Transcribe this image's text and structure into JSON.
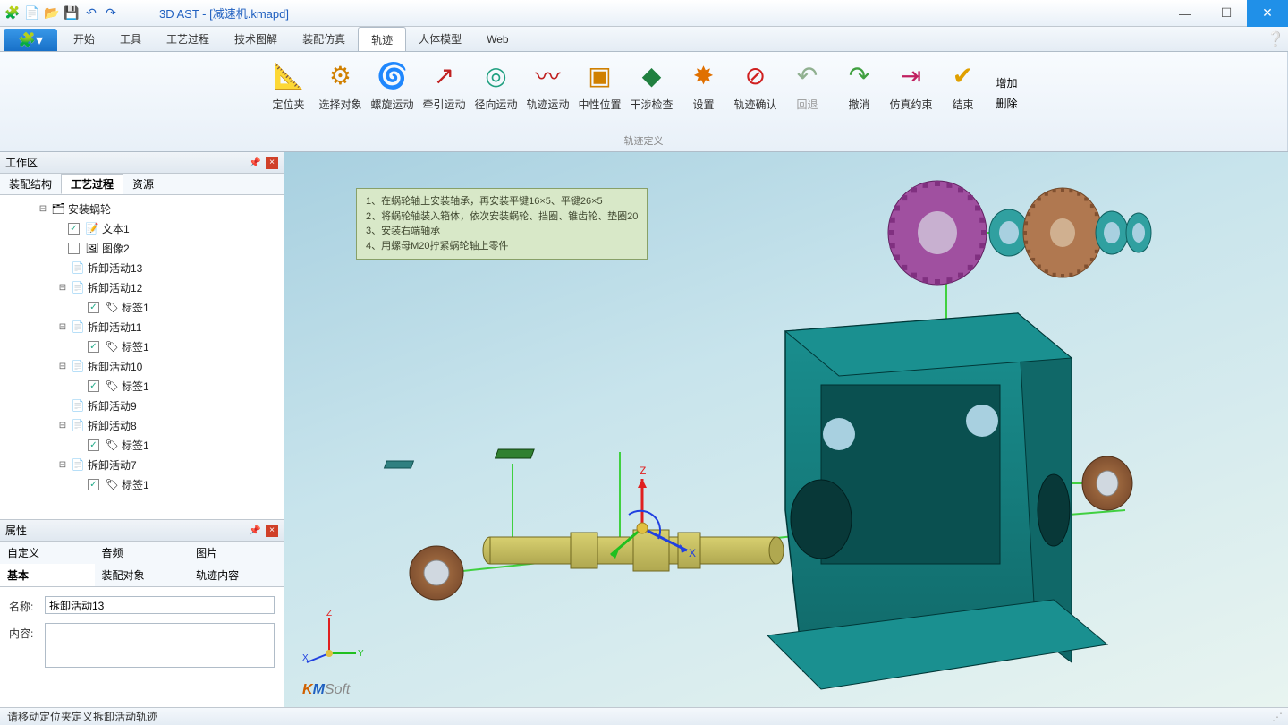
{
  "window": {
    "title": "3D AST - [减速机.kmapd]",
    "qat_icons": [
      "app",
      "new",
      "open",
      "save",
      "undo",
      "redo"
    ]
  },
  "menu": {
    "tabs": [
      "开始",
      "工具",
      "工艺过程",
      "技术图解",
      "装配仿真",
      "轨迹",
      "人体模型",
      "Web"
    ],
    "active_index": 5
  },
  "ribbon": {
    "group_label": "轨迹定义",
    "buttons": [
      {
        "label": "定位夹",
        "icon": "📐",
        "color": "#2060c0"
      },
      {
        "label": "选择对象",
        "icon": "⚙",
        "color": "#d08000"
      },
      {
        "label": "螺旋运动",
        "icon": "🌀",
        "color": "#2060c0"
      },
      {
        "label": "牵引运动",
        "icon": "↗",
        "color": "#c02020"
      },
      {
        "label": "径向运动",
        "icon": "◎",
        "color": "#20a080"
      },
      {
        "label": "轨迹运动",
        "icon": "〰",
        "color": "#c02020"
      },
      {
        "label": "中性位置",
        "icon": "▣",
        "color": "#d08000"
      },
      {
        "label": "干涉检查",
        "icon": "◆",
        "color": "#208040"
      },
      {
        "label": "设置",
        "icon": "✸",
        "color": "#e07000"
      },
      {
        "label": "轨迹确认",
        "icon": "⊘",
        "color": "#d02020"
      },
      {
        "label": "回退",
        "icon": "↶",
        "color": "#90b090",
        "disabled": true
      },
      {
        "label": "撤消",
        "icon": "↷",
        "color": "#40a040"
      },
      {
        "label": "仿真约束",
        "icon": "⇥",
        "color": "#c02060"
      },
      {
        "label": "结束",
        "icon": "✔",
        "color": "#e0a000"
      }
    ],
    "side": [
      "增加",
      "删除"
    ]
  },
  "workarea": {
    "title": "工作区",
    "tabs": [
      "装配结构",
      "工艺过程",
      "资源"
    ],
    "active_tab": 1,
    "tree": [
      {
        "depth": 0,
        "exp": "-",
        "icons": [
          "folder"
        ],
        "label": "安装蜗轮",
        "chk": null
      },
      {
        "depth": 1,
        "exp": "",
        "icons": [
          "text"
        ],
        "label": "文本1",
        "chk": true
      },
      {
        "depth": 1,
        "exp": "",
        "icons": [
          "image"
        ],
        "label": "图像2",
        "chk": false
      },
      {
        "depth": 1,
        "exp": "",
        "icons": [
          "act"
        ],
        "label": "拆卸活动13",
        "chk": null
      },
      {
        "depth": 1,
        "exp": "-",
        "icons": [
          "act"
        ],
        "label": "拆卸活动12",
        "chk": null
      },
      {
        "depth": 2,
        "exp": "",
        "icons": [
          "tag"
        ],
        "label": "标签1",
        "chk": true
      },
      {
        "depth": 1,
        "exp": "-",
        "icons": [
          "act"
        ],
        "label": "拆卸活动11",
        "chk": null
      },
      {
        "depth": 2,
        "exp": "",
        "icons": [
          "tag"
        ],
        "label": "标签1",
        "chk": true
      },
      {
        "depth": 1,
        "exp": "-",
        "icons": [
          "act"
        ],
        "label": "拆卸活动10",
        "chk": null
      },
      {
        "depth": 2,
        "exp": "",
        "icons": [
          "tag"
        ],
        "label": "标签1",
        "chk": true
      },
      {
        "depth": 1,
        "exp": "",
        "icons": [
          "act"
        ],
        "label": "拆卸活动9",
        "chk": null
      },
      {
        "depth": 1,
        "exp": "-",
        "icons": [
          "act"
        ],
        "label": "拆卸活动8",
        "chk": null
      },
      {
        "depth": 2,
        "exp": "",
        "icons": [
          "tag"
        ],
        "label": "标签1",
        "chk": true
      },
      {
        "depth": 1,
        "exp": "-",
        "icons": [
          "act"
        ],
        "label": "拆卸活动7",
        "chk": null
      },
      {
        "depth": 2,
        "exp": "",
        "icons": [
          "tag"
        ],
        "label": "标签1",
        "chk": true
      }
    ]
  },
  "properties": {
    "title": "属性",
    "tabs_row1": [
      "自定义",
      "音频",
      "图片"
    ],
    "tabs_row2": [
      "基本",
      "装配对象",
      "轨迹内容"
    ],
    "active_tab": "基本",
    "name_label": "名称:",
    "name_value": "拆卸活动13",
    "content_label": "内容:",
    "content_value": ""
  },
  "viewport": {
    "note_lines": [
      "1、在蜗轮轴上安装轴承，再安装平键16×5、平键26×5",
      "2、将蜗轮轴装入箱体，依次安装蜗轮、挡圈、锥齿轮、垫圈20",
      "3、安装右端轴承",
      "4、用螺母M20拧紧蜗轮轴上零件"
    ],
    "logo": {
      "k": "K",
      "m": "M",
      "soft": "Soft"
    },
    "triad_labels": {
      "x": "X",
      "y": "Y",
      "z": "Z"
    },
    "colors": {
      "housing": "#1a9090",
      "housing_dark": "#106868",
      "shaft": "#d8d070",
      "shaft_dark": "#b0a850",
      "bearing": "#b07848",
      "bearing_dark": "#805030",
      "gear_purple": "#a050a0",
      "gear_bronze": "#b07850",
      "ring_teal": "#30a0a0",
      "key_green": "#308030",
      "key_teal": "#308080",
      "path_green": "#40d040",
      "axis_red": "#e02020",
      "axis_green": "#20c020",
      "axis_blue": "#2040e0"
    }
  },
  "status": {
    "text": "请移动定位夹定义拆卸活动轨迹"
  }
}
